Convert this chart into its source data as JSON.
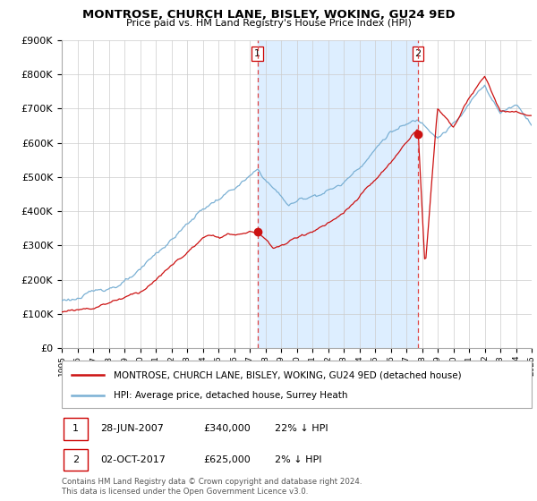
{
  "title": "MONTROSE, CHURCH LANE, BISLEY, WOKING, GU24 9ED",
  "subtitle": "Price paid vs. HM Land Registry's House Price Index (HPI)",
  "legend_entry1": "MONTROSE, CHURCH LANE, BISLEY, WOKING, GU24 9ED (detached house)",
  "legend_entry2": "HPI: Average price, detached house, Surrey Heath",
  "marker1_date": "28-JUN-2007",
  "marker1_price": "£340,000",
  "marker1_hpi": "22% ↓ HPI",
  "marker2_date": "02-OCT-2017",
  "marker2_price": "£625,000",
  "marker2_hpi": "2% ↓ HPI",
  "footer": "Contains HM Land Registry data © Crown copyright and database right 2024.\nThis data is licensed under the Open Government Licence v3.0.",
  "sale1_year": 2007.5,
  "sale1_value": 340000,
  "sale2_year": 2017.75,
  "sale2_value": 625000,
  "red_color": "#cc1111",
  "blue_color": "#7ab0d4",
  "shade_color": "#ddeeff",
  "dashed_color": "#dd4444",
  "background_color": "#ffffff",
  "grid_color": "#cccccc",
  "ylim": [
    0,
    900000
  ],
  "xlim_start": 1995,
  "xlim_end": 2025
}
